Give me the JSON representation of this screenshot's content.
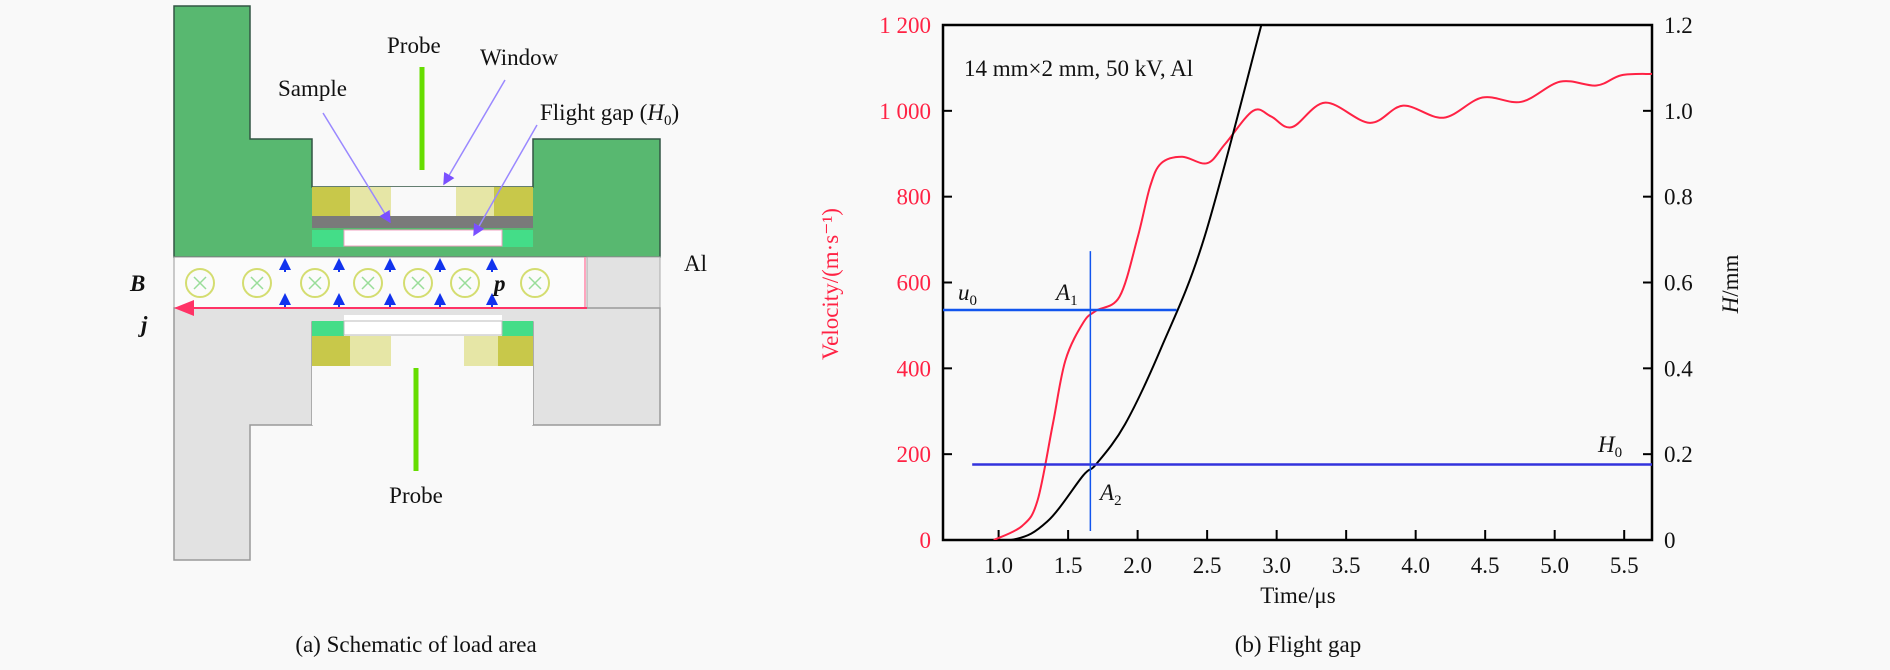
{
  "schematic": {
    "labels": {
      "probe_top": "Probe",
      "window": "Window",
      "sample": "Sample",
      "flight_gap": "Flight gap (",
      "flight_gap_sym": "H",
      "flight_gap_sub": "0",
      "flight_gap_close": ")",
      "al": "Al",
      "b": "B",
      "p": "p",
      "j": "j",
      "probe_bottom": "Probe"
    },
    "caption": "(a) Schematic of load area",
    "colors": {
      "electrode_upper": "#58b870",
      "electrode_lower": "#e2e2e2",
      "insulator": "#c8c84a",
      "pad": "#44dd88",
      "sample": "#7a7a7a",
      "probe": "#66dd00",
      "arrow": "#8a70ff",
      "current": "#ff3366",
      "pressure": "#1133ee",
      "field": "#ccdd66"
    }
  },
  "chart_data": {
    "type": "line",
    "annotation": "14 mm×2 mm, 50 kV, Al",
    "xlabel": "Time/μs",
    "ylabel_left": "Velocity/(m·s⁻¹)",
    "ylabel_right_sym": "H",
    "ylabel_right_unit": "/mm",
    "xlim": [
      0.6,
      5.7
    ],
    "ylim_left": [
      0,
      1200
    ],
    "ylim_right": [
      0,
      1.2
    ],
    "x_ticks": [
      "1.0",
      "1.5",
      "2.0",
      "2.5",
      "3.0",
      "3.5",
      "4.0",
      "4.5",
      "5.0",
      "5.5"
    ],
    "y_left_ticks": [
      "0",
      "200",
      "400",
      "600",
      "800",
      "1 000",
      "1 200"
    ],
    "y_right_ticks": [
      "0",
      "0.2",
      "0.4",
      "0.6",
      "0.8",
      "1.0",
      "1.2"
    ],
    "grid": false,
    "series": [
      {
        "axis": "left",
        "color": "#ff2244",
        "x": [
          0.965,
          1.17,
          1.28,
          1.39,
          1.48,
          1.61,
          1.7,
          1.87,
          2.0,
          2.09,
          2.17,
          2.32,
          2.5,
          2.63,
          2.83,
          2.96,
          3.11,
          3.35,
          3.67,
          3.91,
          4.2,
          4.48,
          4.76,
          5.04,
          5.3,
          5.48,
          5.7
        ],
        "y": [
          0,
          33,
          92,
          270,
          418,
          507,
          534,
          567,
          705,
          824,
          878,
          893,
          878,
          923,
          1000,
          987,
          962,
          1019,
          972,
          1012,
          984,
          1031,
          1021,
          1068,
          1059,
          1083,
          1086
        ]
      },
      {
        "axis": "right",
        "color": "#000000",
        "x": [
          0.6,
          1.09,
          1.35,
          1.61,
          1.7,
          1.91,
          2.17,
          2.48,
          2.89
        ],
        "y": [
          0,
          0,
          0.043,
          0.151,
          0.176,
          0.27,
          0.448,
          0.705,
          1.2
        ]
      }
    ],
    "reference_lines": {
      "u0": {
        "label": "u",
        "sub": "0",
        "velocity": 536,
        "x_end": 2.28,
        "color": "#1155ee"
      },
      "H0": {
        "label": "H",
        "sub": "0",
        "H": 0.176,
        "x_start": 0.81,
        "color": "#3333dd"
      },
      "vertical": {
        "x": 1.66,
        "v_from": 21,
        "v_to": 673,
        "color": "#1155ee"
      }
    },
    "points": {
      "A1": {
        "label": "A",
        "sub": "1"
      },
      "A2": {
        "label": "A",
        "sub": "2"
      }
    },
    "caption": "(b) Flight gap"
  }
}
